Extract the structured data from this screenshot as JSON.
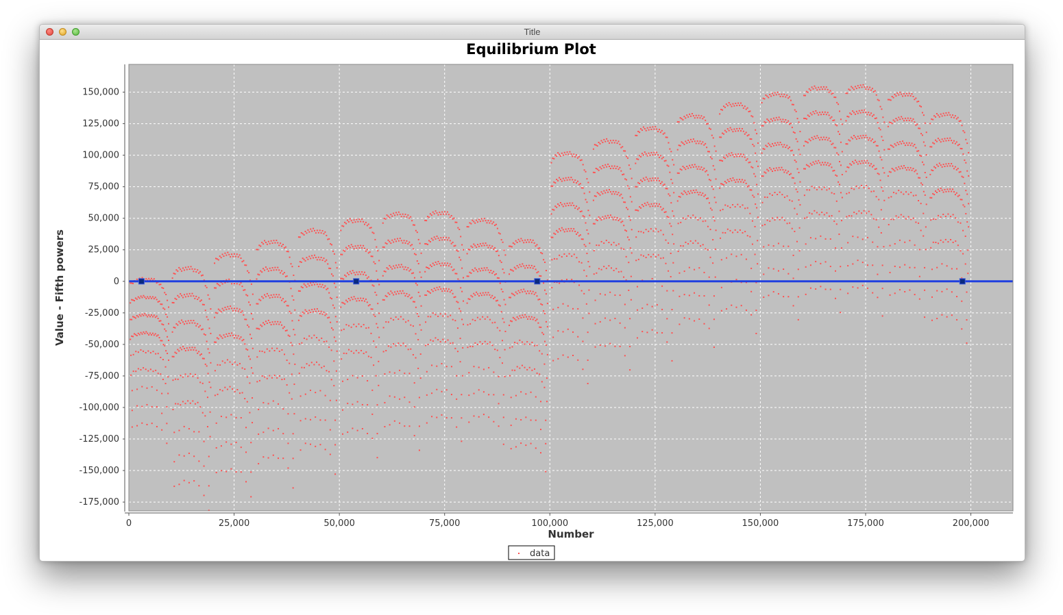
{
  "window": {
    "title": "Title"
  },
  "colors": {
    "plot_bg": "#c0c0c0",
    "data_points": "#ff5050",
    "reference_line": "#1f3fe0",
    "marker": "#0a2a80",
    "grid": "#ffffff"
  },
  "chart_data": {
    "type": "scatter",
    "title": "Equilibrium Plot",
    "xlabel": "Number",
    "ylabel": "Value - Fifth powers",
    "xlim": [
      0,
      210000
    ],
    "ylim": [
      -182000,
      172000
    ],
    "x_ticks": [
      0,
      25000,
      50000,
      75000,
      100000,
      125000,
      150000,
      175000,
      200000
    ],
    "x_tick_labels": [
      "0",
      "25,000",
      "50,000",
      "75,000",
      "100,000",
      "125,000",
      "150,000",
      "175,000",
      "200,000"
    ],
    "y_ticks": [
      150000,
      125000,
      100000,
      75000,
      50000,
      25000,
      0,
      -25000,
      -50000,
      -75000,
      -100000,
      -125000,
      -150000,
      -175000
    ],
    "y_tick_labels": [
      "150,000",
      "125,000",
      "100,000",
      "75,000",
      "50,000",
      "25,000",
      "0",
      "-25,000",
      "-50,000",
      "-75,000",
      "-100,000",
      "-125,000",
      "-150,000",
      "-175,000"
    ],
    "grid": true,
    "legend": {
      "placement": "bottom-center",
      "entries": [
        "data"
      ]
    },
    "series": [
      {
        "name": "data",
        "marker": "dot",
        "pattern": "20 block clusters, one per 10,000 numbers; for n in block b with d = n mod 10,000: y = b*10,000 + A*(1-(d/10,000)^5) - R - k*S, k = 0..8 descending rows",
        "blocks": [
          {
            "x_start": 0,
            "x_end": 10000,
            "top": 3000,
            "bottom": -120000
          },
          {
            "x_start": 10000,
            "x_end": 20000,
            "top": 12000,
            "bottom": -170000
          },
          {
            "x_start": 20000,
            "x_end": 30000,
            "top": 23000,
            "bottom": -160000
          },
          {
            "x_start": 30000,
            "x_end": 40000,
            "top": 33000,
            "bottom": -150000
          },
          {
            "x_start": 40000,
            "x_end": 50000,
            "top": 42000,
            "bottom": -140000
          },
          {
            "x_start": 50000,
            "x_end": 60000,
            "top": 50000,
            "bottom": -128000
          },
          {
            "x_start": 60000,
            "x_end": 70000,
            "top": 55000,
            "bottom": -123000
          },
          {
            "x_start": 70000,
            "x_end": 80000,
            "top": 56000,
            "bottom": -117000
          },
          {
            "x_start": 80000,
            "x_end": 90000,
            "top": 50000,
            "bottom": -117000
          },
          {
            "x_start": 90000,
            "x_end": 100000,
            "top": 34000,
            "bottom": -139000
          },
          {
            "x_start": 100000,
            "x_end": 110000,
            "top": 103000,
            "bottom": -70000
          },
          {
            "x_start": 110000,
            "x_end": 120000,
            "top": 113000,
            "bottom": -60000
          },
          {
            "x_start": 120000,
            "x_end": 130000,
            "top": 123000,
            "bottom": -50000
          },
          {
            "x_start": 130000,
            "x_end": 140000,
            "top": 133000,
            "bottom": -40000
          },
          {
            "x_start": 140000,
            "x_end": 150000,
            "top": 142000,
            "bottom": -30000
          },
          {
            "x_start": 150000,
            "x_end": 160000,
            "top": 150000,
            "bottom": -20000
          },
          {
            "x_start": 160000,
            "x_end": 170000,
            "top": 155000,
            "bottom": -15000
          },
          {
            "x_start": 170000,
            "x_end": 180000,
            "top": 156000,
            "bottom": -15000
          },
          {
            "x_start": 180000,
            "x_end": 190000,
            "top": 150000,
            "bottom": -17000
          },
          {
            "x_start": 190000,
            "x_end": 200000,
            "top": 134000,
            "bottom": -38000
          }
        ]
      }
    ],
    "reference_line": {
      "y": 0
    },
    "equilibrium_points": [
      {
        "x": 3000,
        "y": 0
      },
      {
        "x": 54000,
        "y": 0
      },
      {
        "x": 97000,
        "y": 0
      },
      {
        "x": 198000,
        "y": 0
      }
    ]
  }
}
